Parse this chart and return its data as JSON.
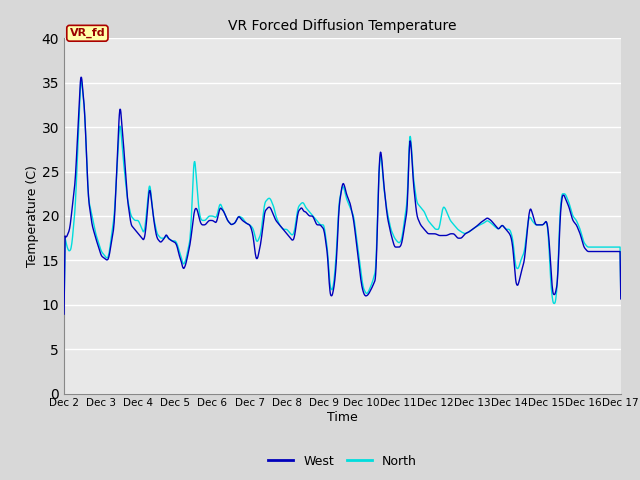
{
  "title": "VR Forced Diffusion Temperature",
  "xlabel": "Time",
  "ylabel": "Temperature (C)",
  "ylim": [
    0,
    40
  ],
  "yticks": [
    0,
    5,
    10,
    15,
    20,
    25,
    30,
    35,
    40
  ],
  "figure_bg": "#d8d8d8",
  "plot_bg": "#e8e8e8",
  "west_color": "#0000BB",
  "north_color": "#00DDDD",
  "grid_color": "#ffffff",
  "label_box_text": "VR_fd",
  "label_box_bg": "#ffffaa",
  "label_box_border": "#aa0000",
  "label_box_text_color": "#990000",
  "days": [
    "Dec 2",
    "Dec 3",
    "Dec 4",
    "Dec 5",
    "Dec 6",
    "Dec 7",
    "Dec 8",
    "Dec 9",
    "Dec 10",
    "Dec 11",
    "Dec 12",
    "Dec 13",
    "Dec 14",
    "Dec 15",
    "Dec 16",
    "Dec 17"
  ]
}
